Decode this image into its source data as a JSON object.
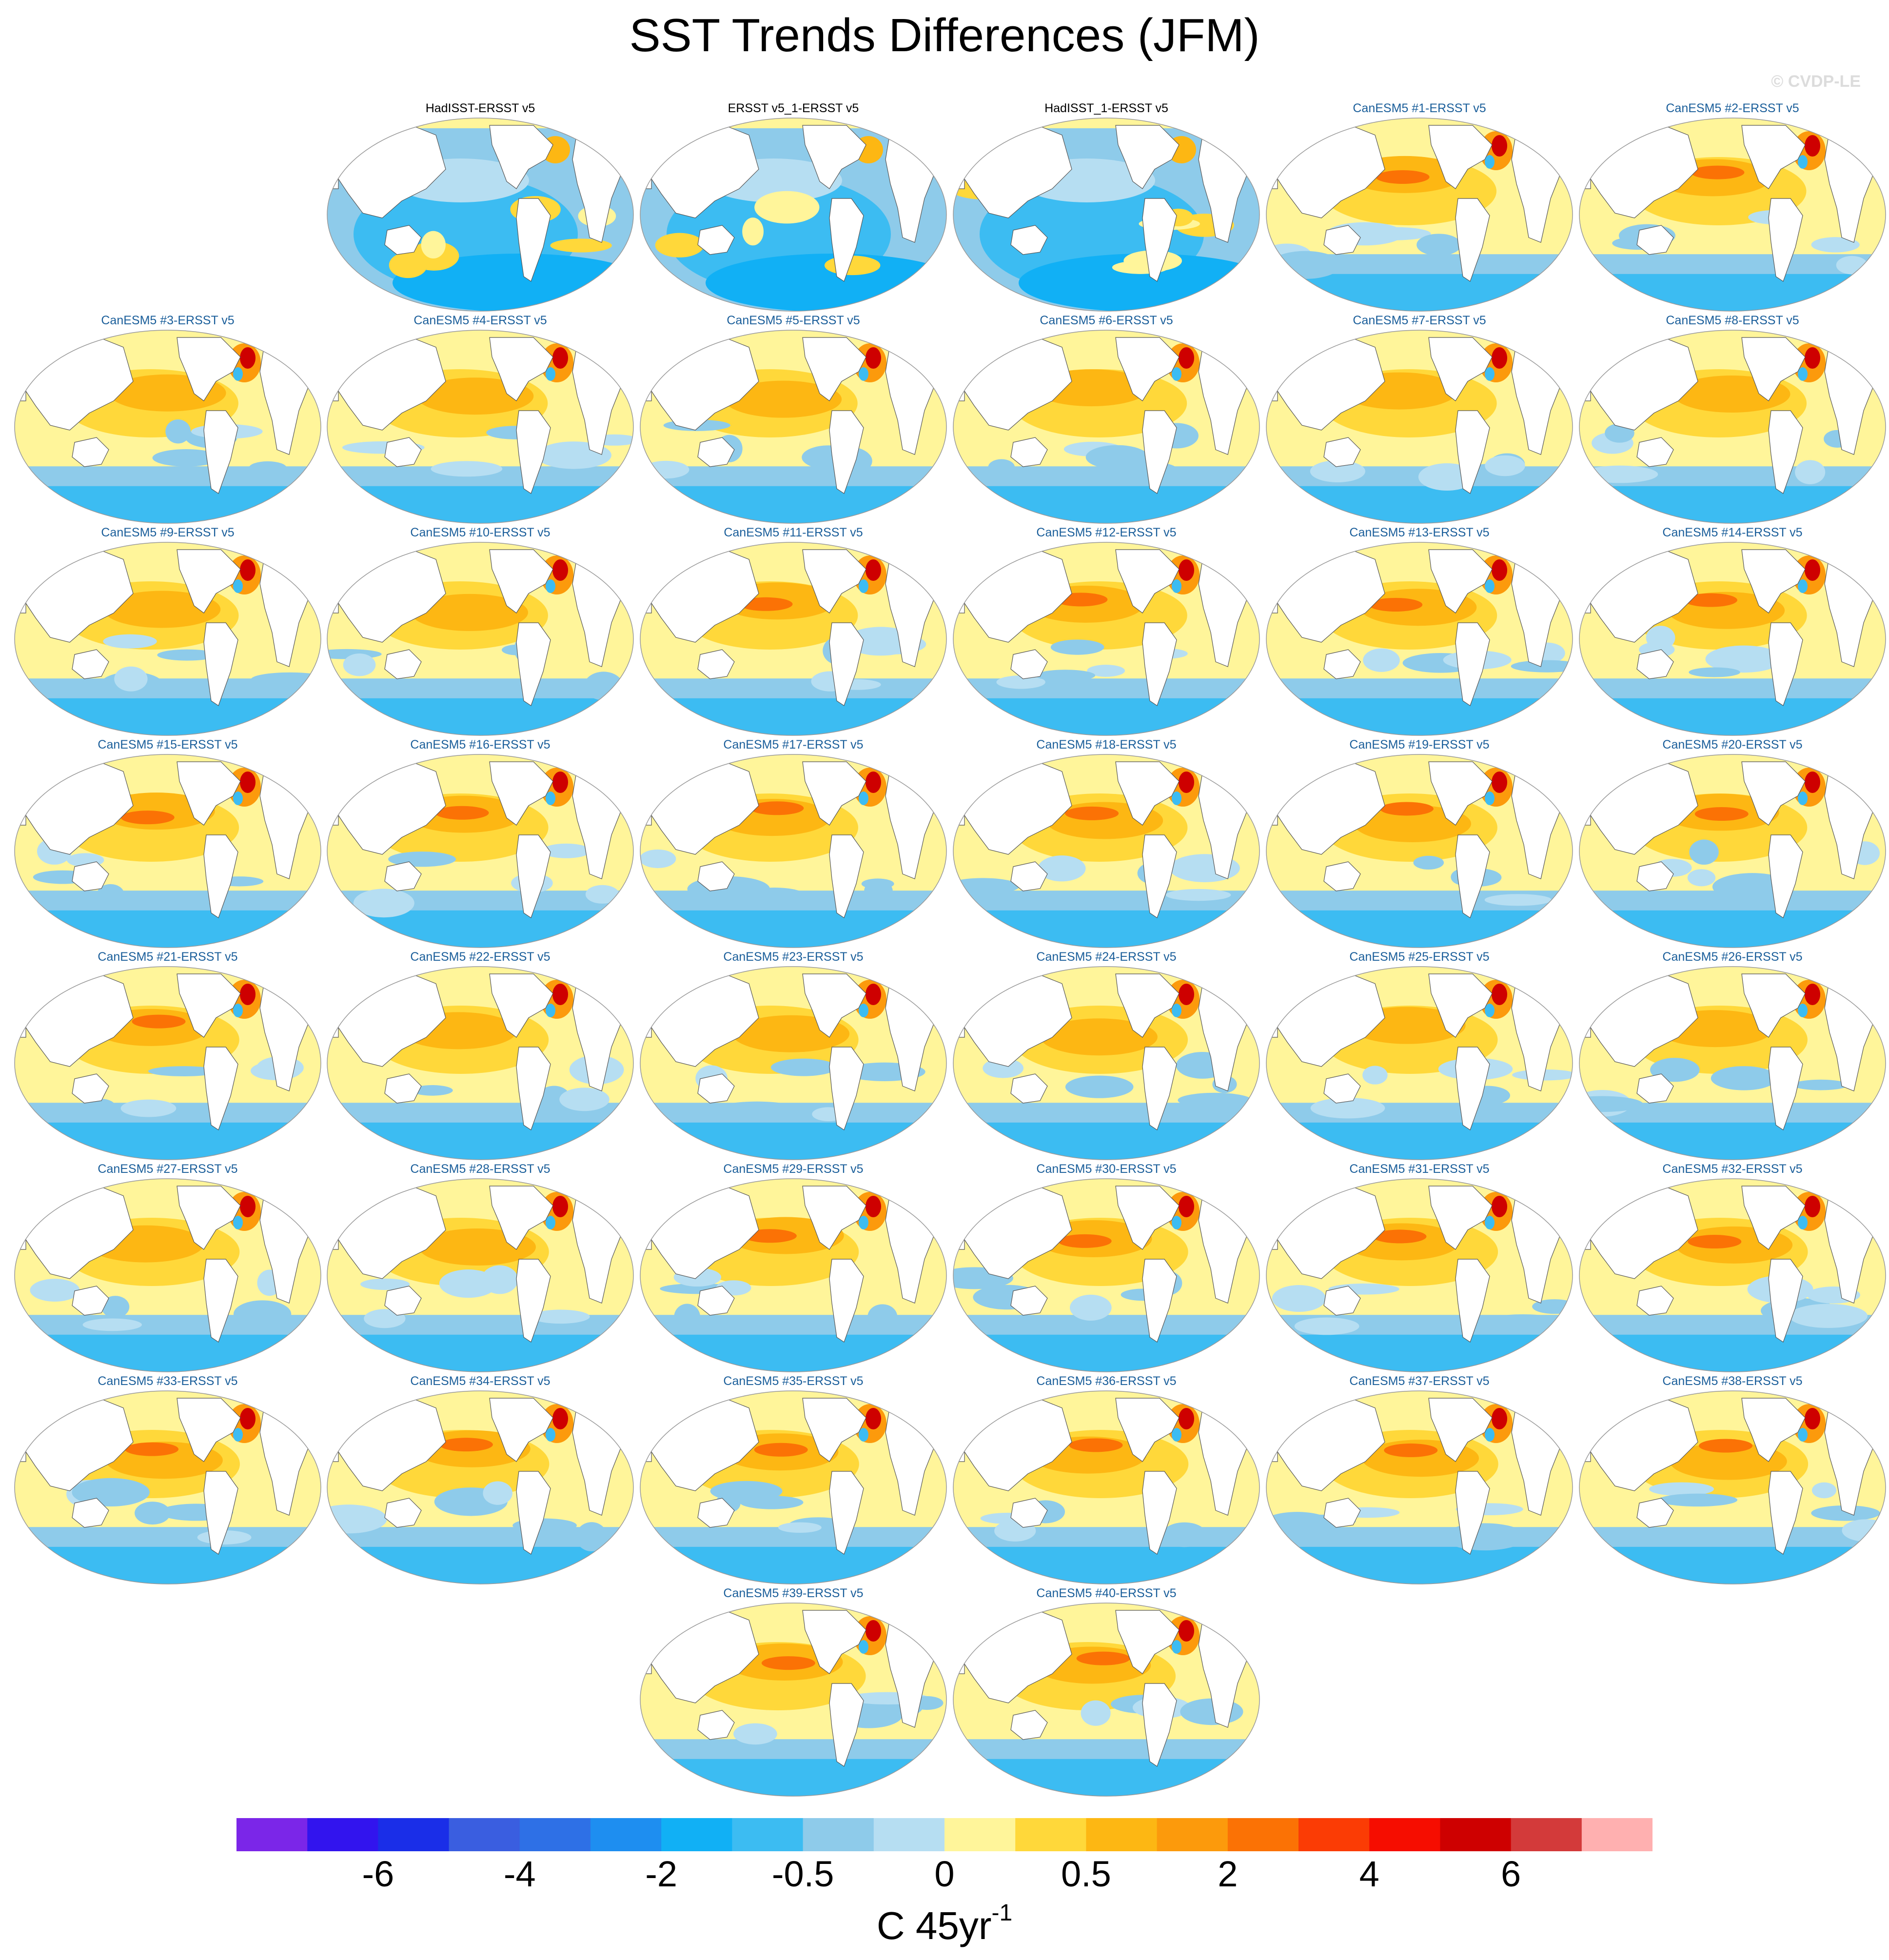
{
  "title": "SST Trends Differences (JFM)",
  "watermark": "© CVDP-LE",
  "panels": [
    {
      "label": "HadISST-ERSST v5",
      "kind": "obs",
      "pattern": "cool"
    },
    {
      "label": "ERSST v5_1-ERSST v5",
      "kind": "obs",
      "pattern": "cool"
    },
    {
      "label": "HadISST_1-ERSST v5",
      "kind": "obs",
      "pattern": "cool"
    },
    {
      "label": "CanESM5 #1-ERSST v5",
      "kind": "model",
      "pattern": "warm"
    },
    {
      "label": "CanESM5 #2-ERSST v5",
      "kind": "model",
      "pattern": "warm"
    },
    {
      "label": "CanESM5 #3-ERSST v5",
      "kind": "model",
      "pattern": "warm"
    },
    {
      "label": "CanESM5 #4-ERSST v5",
      "kind": "model",
      "pattern": "warm"
    },
    {
      "label": "CanESM5 #5-ERSST v5",
      "kind": "model",
      "pattern": "warm"
    },
    {
      "label": "CanESM5 #6-ERSST v5",
      "kind": "model",
      "pattern": "warm"
    },
    {
      "label": "CanESM5 #7-ERSST v5",
      "kind": "model",
      "pattern": "warm"
    },
    {
      "label": "CanESM5 #8-ERSST v5",
      "kind": "model",
      "pattern": "warm"
    },
    {
      "label": "CanESM5 #9-ERSST v5",
      "kind": "model",
      "pattern": "warm"
    },
    {
      "label": "CanESM5 #10-ERSST v5",
      "kind": "model",
      "pattern": "warm"
    },
    {
      "label": "CanESM5 #11-ERSST v5",
      "kind": "model",
      "pattern": "warm"
    },
    {
      "label": "CanESM5 #12-ERSST v5",
      "kind": "model",
      "pattern": "warm"
    },
    {
      "label": "CanESM5 #13-ERSST v5",
      "kind": "model",
      "pattern": "warm"
    },
    {
      "label": "CanESM5 #14-ERSST v5",
      "kind": "model",
      "pattern": "warm"
    },
    {
      "label": "CanESM5 #15-ERSST v5",
      "kind": "model",
      "pattern": "warm"
    },
    {
      "label": "CanESM5 #16-ERSST v5",
      "kind": "model",
      "pattern": "warm"
    },
    {
      "label": "CanESM5 #17-ERSST v5",
      "kind": "model",
      "pattern": "warm"
    },
    {
      "label": "CanESM5 #18-ERSST v5",
      "kind": "model",
      "pattern": "warm"
    },
    {
      "label": "CanESM5 #19-ERSST v5",
      "kind": "model",
      "pattern": "warm"
    },
    {
      "label": "CanESM5 #20-ERSST v5",
      "kind": "model",
      "pattern": "warm"
    },
    {
      "label": "CanESM5 #21-ERSST v5",
      "kind": "model",
      "pattern": "warm"
    },
    {
      "label": "CanESM5 #22-ERSST v5",
      "kind": "model",
      "pattern": "warm"
    },
    {
      "label": "CanESM5 #23-ERSST v5",
      "kind": "model",
      "pattern": "warm"
    },
    {
      "label": "CanESM5 #24-ERSST v5",
      "kind": "model",
      "pattern": "warm"
    },
    {
      "label": "CanESM5 #25-ERSST v5",
      "kind": "model",
      "pattern": "warm"
    },
    {
      "label": "CanESM5 #26-ERSST v5",
      "kind": "model",
      "pattern": "warm"
    },
    {
      "label": "CanESM5 #27-ERSST v5",
      "kind": "model",
      "pattern": "warm"
    },
    {
      "label": "CanESM5 #28-ERSST v5",
      "kind": "model",
      "pattern": "warm"
    },
    {
      "label": "CanESM5 #29-ERSST v5",
      "kind": "model",
      "pattern": "warm"
    },
    {
      "label": "CanESM5 #30-ERSST v5",
      "kind": "model",
      "pattern": "warm"
    },
    {
      "label": "CanESM5 #31-ERSST v5",
      "kind": "model",
      "pattern": "warm"
    },
    {
      "label": "CanESM5 #32-ERSST v5",
      "kind": "model",
      "pattern": "warm"
    },
    {
      "label": "CanESM5 #33-ERSST v5",
      "kind": "model",
      "pattern": "warm"
    },
    {
      "label": "CanESM5 #34-ERSST v5",
      "kind": "model",
      "pattern": "warm"
    },
    {
      "label": "CanESM5 #35-ERSST v5",
      "kind": "model",
      "pattern": "warm"
    },
    {
      "label": "CanESM5 #36-ERSST v5",
      "kind": "model",
      "pattern": "warm"
    },
    {
      "label": "CanESM5 #37-ERSST v5",
      "kind": "model",
      "pattern": "warm"
    },
    {
      "label": "CanESM5 #38-ERSST v5",
      "kind": "model",
      "pattern": "warm"
    },
    {
      "label": "CanESM5 #39-ERSST v5",
      "kind": "model",
      "pattern": "warm"
    },
    {
      "label": "CanESM5 #40-ERSST v5",
      "kind": "model",
      "pattern": "warm"
    }
  ],
  "colorbar": {
    "colors": [
      "#7b26e8",
      "#3214ee",
      "#1a2ee8",
      "#3a5ee0",
      "#2e70e6",
      "#1e8ef0",
      "#11b0f5",
      "#3cbcf2",
      "#8ecbea",
      "#b6def2",
      "#fff59a",
      "#ffd83a",
      "#fdb713",
      "#fc9a0c",
      "#fb7205",
      "#fb3c05",
      "#f60d00",
      "#ce0000",
      "#d33a3a",
      "#ffb0b0"
    ],
    "labels": [
      "-6",
      "-4",
      "-2",
      "-0.5",
      "0",
      "0.5",
      "2",
      "4",
      "6"
    ],
    "units_base": "C 45yr",
    "units_exp": "-1"
  }
}
